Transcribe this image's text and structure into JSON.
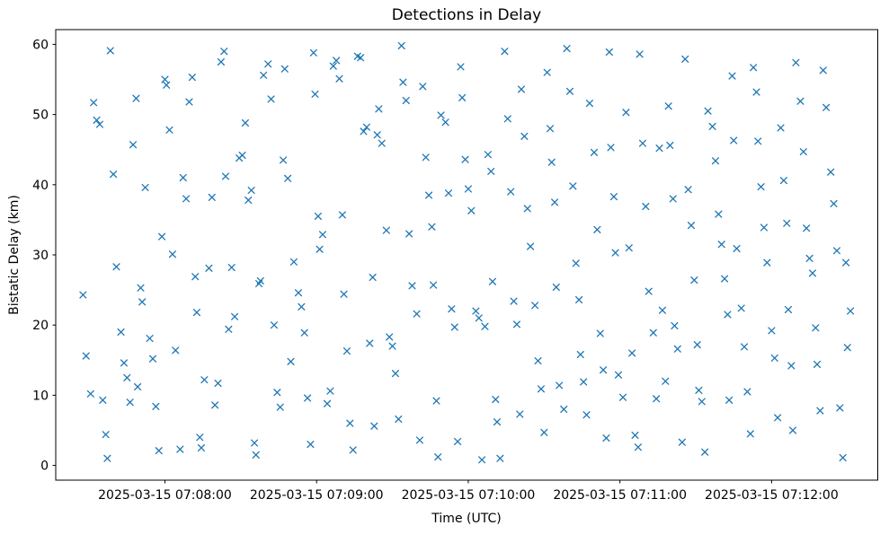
{
  "chart_data": {
    "type": "scatter",
    "title": "Detections in Delay",
    "xlabel": "Time (UTC)",
    "ylabel": "Bistatic Delay (km)",
    "marker": "x",
    "marker_color": "#1f77b4",
    "background_color": "#ffffff",
    "grid": false,
    "legend": null,
    "x_unit": "minutes after 2025-03-15 07:08:00 UTC",
    "x_axis": {
      "tick_values": [
        0,
        1,
        2,
        3,
        4
      ],
      "tick_labels": [
        "2025-03-15 07:08:00",
        "2025-03-15 07:09:00",
        "2025-03-15 07:10:00",
        "2025-03-15 07:11:00",
        "2025-03-15 07:12:00"
      ],
      "xlim": [
        -0.72,
        4.7
      ]
    },
    "y_axis": {
      "tick_values": [
        0,
        10,
        20,
        30,
        40,
        50,
        60
      ],
      "tick_labels": [
        "0",
        "10",
        "20",
        "30",
        "40",
        "50",
        "60"
      ],
      "ylim": [
        -2.1,
        62.1
      ]
    },
    "points": [
      [
        -0.54,
        24.3
      ],
      [
        -0.52,
        15.6
      ],
      [
        -0.49,
        10.2
      ],
      [
        -0.47,
        51.7
      ],
      [
        -0.45,
        49.2
      ],
      [
        -0.43,
        48.6
      ],
      [
        -0.41,
        9.3
      ],
      [
        -0.39,
        4.4
      ],
      [
        -0.38,
        1.0
      ],
      [
        -0.36,
        59.1
      ],
      [
        -0.34,
        41.5
      ],
      [
        -0.32,
        28.3
      ],
      [
        -0.29,
        19.0
      ],
      [
        -0.27,
        14.6
      ],
      [
        -0.25,
        12.5
      ],
      [
        -0.23,
        9.0
      ],
      [
        -0.21,
        45.7
      ],
      [
        -0.19,
        52.3
      ],
      [
        -0.18,
        11.2
      ],
      [
        -0.16,
        25.3
      ],
      [
        -0.15,
        23.3
      ],
      [
        -0.13,
        39.6
      ],
      [
        -0.1,
        18.1
      ],
      [
        -0.08,
        15.2
      ],
      [
        -0.06,
        8.4
      ],
      [
        -0.04,
        2.1
      ],
      [
        -0.02,
        32.6
      ],
      [
        0.0,
        55.0
      ],
      [
        0.01,
        54.2
      ],
      [
        0.03,
        47.8
      ],
      [
        0.05,
        30.1
      ],
      [
        0.07,
        16.4
      ],
      [
        0.1,
        2.3
      ],
      [
        0.12,
        41.0
      ],
      [
        0.14,
        38.0
      ],
      [
        0.16,
        51.8
      ],
      [
        0.18,
        55.3
      ],
      [
        0.2,
        26.9
      ],
      [
        0.21,
        21.8
      ],
      [
        0.23,
        4.0
      ],
      [
        0.24,
        2.5
      ],
      [
        0.26,
        12.2
      ],
      [
        0.29,
        28.1
      ],
      [
        0.31,
        38.2
      ],
      [
        0.33,
        8.6
      ],
      [
        0.35,
        11.7
      ],
      [
        0.37,
        57.5
      ],
      [
        0.39,
        59.0
      ],
      [
        0.4,
        41.2
      ],
      [
        0.42,
        19.4
      ],
      [
        0.44,
        28.2
      ],
      [
        0.46,
        21.2
      ],
      [
        0.49,
        43.8
      ],
      [
        0.51,
        44.2
      ],
      [
        0.53,
        48.8
      ],
      [
        0.55,
        37.8
      ],
      [
        0.57,
        39.2
      ],
      [
        0.59,
        3.2
      ],
      [
        0.6,
        1.5
      ],
      [
        0.62,
        25.9
      ],
      [
        0.63,
        26.3
      ],
      [
        0.65,
        55.6
      ],
      [
        0.68,
        57.2
      ],
      [
        0.7,
        52.2
      ],
      [
        0.72,
        20.0
      ],
      [
        0.74,
        10.4
      ],
      [
        0.76,
        8.3
      ],
      [
        0.78,
        43.5
      ],
      [
        0.79,
        56.5
      ],
      [
        0.81,
        40.9
      ],
      [
        0.83,
        14.8
      ],
      [
        0.85,
        29.0
      ],
      [
        0.88,
        24.6
      ],
      [
        0.9,
        22.6
      ],
      [
        0.92,
        18.9
      ],
      [
        0.94,
        9.6
      ],
      [
        0.96,
        3.0
      ],
      [
        0.98,
        58.8
      ],
      [
        0.99,
        52.9
      ],
      [
        1.01,
        35.5
      ],
      [
        1.02,
        30.8
      ],
      [
        1.04,
        32.9
      ],
      [
        1.07,
        8.8
      ],
      [
        1.09,
        10.6
      ],
      [
        1.11,
        56.9
      ],
      [
        1.13,
        57.7
      ],
      [
        1.15,
        55.1
      ],
      [
        1.17,
        35.7
      ],
      [
        1.18,
        24.4
      ],
      [
        1.2,
        16.3
      ],
      [
        1.22,
        6.0
      ],
      [
        1.24,
        2.2
      ],
      [
        1.27,
        58.3
      ],
      [
        1.29,
        58.1
      ],
      [
        1.31,
        47.6
      ],
      [
        1.33,
        48.2
      ],
      [
        1.35,
        17.4
      ],
      [
        1.37,
        26.8
      ],
      [
        1.38,
        5.6
      ],
      [
        1.4,
        47.1
      ],
      [
        1.41,
        50.8
      ],
      [
        1.43,
        45.9
      ],
      [
        1.46,
        33.5
      ],
      [
        1.48,
        18.3
      ],
      [
        1.5,
        17.0
      ],
      [
        1.52,
        13.1
      ],
      [
        1.54,
        6.6
      ],
      [
        1.56,
        59.8
      ],
      [
        1.57,
        54.6
      ],
      [
        1.59,
        52.0
      ],
      [
        1.61,
        33.0
      ],
      [
        1.63,
        25.6
      ],
      [
        1.66,
        21.6
      ],
      [
        1.68,
        3.6
      ],
      [
        1.7,
        54.0
      ],
      [
        1.72,
        43.9
      ],
      [
        1.74,
        38.5
      ],
      [
        1.76,
        34.0
      ],
      [
        1.77,
        25.7
      ],
      [
        1.79,
        9.2
      ],
      [
        1.8,
        1.2
      ],
      [
        1.82,
        49.9
      ],
      [
        1.85,
        48.9
      ],
      [
        1.87,
        38.8
      ],
      [
        1.89,
        22.3
      ],
      [
        1.91,
        19.7
      ],
      [
        1.93,
        3.4
      ],
      [
        1.95,
        56.8
      ],
      [
        1.96,
        52.4
      ],
      [
        1.98,
        43.6
      ],
      [
        2.0,
        39.4
      ],
      [
        2.02,
        36.3
      ],
      [
        2.05,
        22.0
      ],
      [
        2.07,
        21.0
      ],
      [
        2.09,
        0.8
      ],
      [
        2.11,
        19.8
      ],
      [
        2.13,
        44.3
      ],
      [
        2.15,
        41.9
      ],
      [
        2.16,
        26.2
      ],
      [
        2.18,
        9.4
      ],
      [
        2.19,
        6.2
      ],
      [
        2.21,
        1.0
      ],
      [
        2.24,
        59.0
      ],
      [
        2.26,
        49.4
      ],
      [
        2.28,
        39.0
      ],
      [
        2.3,
        23.4
      ],
      [
        2.32,
        20.1
      ],
      [
        2.34,
        7.3
      ],
      [
        2.35,
        53.6
      ],
      [
        2.37,
        46.9
      ],
      [
        2.39,
        36.6
      ],
      [
        2.41,
        31.2
      ],
      [
        2.44,
        22.8
      ],
      [
        2.46,
        14.9
      ],
      [
        2.48,
        10.9
      ],
      [
        2.5,
        4.7
      ],
      [
        2.52,
        56.0
      ],
      [
        2.54,
        48.0
      ],
      [
        2.55,
        43.2
      ],
      [
        2.57,
        37.5
      ],
      [
        2.58,
        25.4
      ],
      [
        2.6,
        11.4
      ],
      [
        2.63,
        8.0
      ],
      [
        2.65,
        59.4
      ],
      [
        2.67,
        53.3
      ],
      [
        2.69,
        39.8
      ],
      [
        2.71,
        28.8
      ],
      [
        2.73,
        23.6
      ],
      [
        2.74,
        15.8
      ],
      [
        2.76,
        11.9
      ],
      [
        2.78,
        7.2
      ],
      [
        2.8,
        51.6
      ],
      [
        2.83,
        44.6
      ],
      [
        2.85,
        33.6
      ],
      [
        2.87,
        18.8
      ],
      [
        2.89,
        13.6
      ],
      [
        2.91,
        3.9
      ],
      [
        2.93,
        58.9
      ],
      [
        2.94,
        45.3
      ],
      [
        2.96,
        38.3
      ],
      [
        2.97,
        30.3
      ],
      [
        2.99,
        12.9
      ],
      [
        3.02,
        9.7
      ],
      [
        3.04,
        50.3
      ],
      [
        3.06,
        31.0
      ],
      [
        3.08,
        16.0
      ],
      [
        3.1,
        4.3
      ],
      [
        3.12,
        2.6
      ],
      [
        3.13,
        58.6
      ],
      [
        3.15,
        45.9
      ],
      [
        3.17,
        36.9
      ],
      [
        3.19,
        24.8
      ],
      [
        3.22,
        18.9
      ],
      [
        3.24,
        9.5
      ],
      [
        3.26,
        45.2
      ],
      [
        3.28,
        22.1
      ],
      [
        3.3,
        12.0
      ],
      [
        3.32,
        51.2
      ],
      [
        3.33,
        45.6
      ],
      [
        3.35,
        38.0
      ],
      [
        3.36,
        19.9
      ],
      [
        3.38,
        16.6
      ],
      [
        3.41,
        3.3
      ],
      [
        3.43,
        57.9
      ],
      [
        3.45,
        39.3
      ],
      [
        3.47,
        34.2
      ],
      [
        3.49,
        26.4
      ],
      [
        3.51,
        17.2
      ],
      [
        3.52,
        10.7
      ],
      [
        3.54,
        9.1
      ],
      [
        3.56,
        1.9
      ],
      [
        3.58,
        50.5
      ],
      [
        3.61,
        48.3
      ],
      [
        3.63,
        43.4
      ],
      [
        3.65,
        35.8
      ],
      [
        3.67,
        31.5
      ],
      [
        3.69,
        26.6
      ],
      [
        3.71,
        21.5
      ],
      [
        3.72,
        9.3
      ],
      [
        3.74,
        55.5
      ],
      [
        3.75,
        46.3
      ],
      [
        3.77,
        30.9
      ],
      [
        3.8,
        22.4
      ],
      [
        3.82,
        16.9
      ],
      [
        3.84,
        10.5
      ],
      [
        3.86,
        4.5
      ],
      [
        3.88,
        56.7
      ],
      [
        3.9,
        53.2
      ],
      [
        3.91,
        46.2
      ],
      [
        3.93,
        39.7
      ],
      [
        3.95,
        33.9
      ],
      [
        3.97,
        28.9
      ],
      [
        4.0,
        19.2
      ],
      [
        4.02,
        15.3
      ],
      [
        4.04,
        6.8
      ],
      [
        4.06,
        48.1
      ],
      [
        4.08,
        40.6
      ],
      [
        4.1,
        34.5
      ],
      [
        4.11,
        22.2
      ],
      [
        4.13,
        14.2
      ],
      [
        4.14,
        5.0
      ],
      [
        4.16,
        57.4
      ],
      [
        4.19,
        51.9
      ],
      [
        4.21,
        44.7
      ],
      [
        4.23,
        33.8
      ],
      [
        4.25,
        29.5
      ],
      [
        4.27,
        27.4
      ],
      [
        4.29,
        19.6
      ],
      [
        4.3,
        14.4
      ],
      [
        4.32,
        7.8
      ],
      [
        4.34,
        56.3
      ],
      [
        4.36,
        51.0
      ],
      [
        4.39,
        41.8
      ],
      [
        4.41,
        37.3
      ],
      [
        4.43,
        30.6
      ],
      [
        4.45,
        8.2
      ],
      [
        4.47,
        1.1
      ],
      [
        4.49,
        28.9
      ],
      [
        4.5,
        16.8
      ],
      [
        4.52,
        22.0
      ]
    ]
  }
}
